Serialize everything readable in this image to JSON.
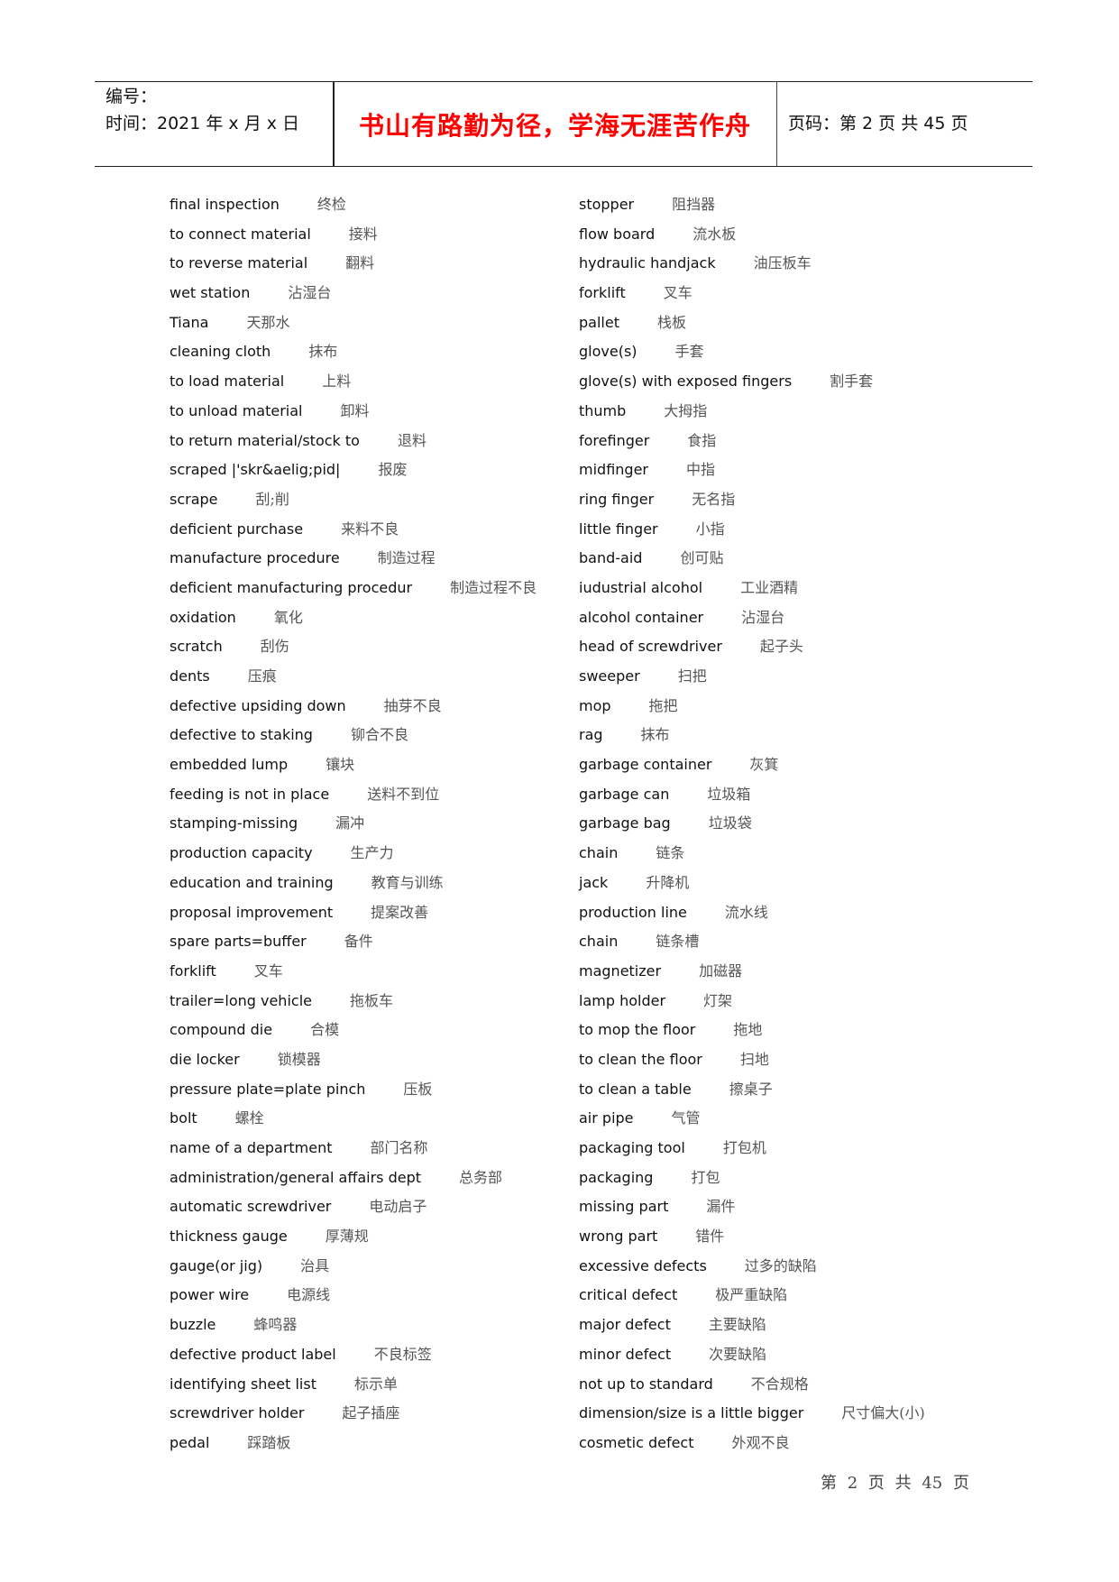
{
  "header": {
    "number_label": "编号：",
    "date_label": "时间：2021 年 x 月 x 日",
    "title": "书山有路勤为径，学海无涯苦作舟",
    "page_label": "页码：第 2 页  共 45 页",
    "title_color": "#ff0000"
  },
  "left_column": [
    {
      "en": "final inspection",
      "zh": "终检"
    },
    {
      "en": "to connect material",
      "zh": "接料"
    },
    {
      "en": "to reverse material",
      "zh": "翻料"
    },
    {
      "en": "wet station",
      "zh": "沾湿台"
    },
    {
      "en": "Tiana",
      "zh": "天那水"
    },
    {
      "en": "cleaning cloth",
      "zh": "抹布"
    },
    {
      "en": "to load material",
      "zh": "上料"
    },
    {
      "en": "to unload material",
      "zh": "卸料"
    },
    {
      "en": "to return material/stock to",
      "zh": "退料"
    },
    {
      "en": "scraped |'skr&aelig;pid|",
      "zh": "报废"
    },
    {
      "en": "scrape",
      "zh": "刮;削"
    },
    {
      "en": "deficient purchase",
      "zh": "来料不良"
    },
    {
      "en": "manufacture procedure",
      "zh": "制造过程"
    },
    {
      "en": "deficient manufacturing procedur",
      "zh": "制造过程不良"
    },
    {
      "en": "oxidation",
      "zh": "氧化"
    },
    {
      "en": "scratch",
      "zh": "刮伤"
    },
    {
      "en": "dents",
      "zh": "压痕"
    },
    {
      "en": "defective upsiding down",
      "zh": "抽芽不良"
    },
    {
      "en": "defective to staking",
      "zh": "铆合不良"
    },
    {
      "en": "embedded lump",
      "zh": "镶块"
    },
    {
      "en": "feeding is not in place",
      "zh": "送料不到位"
    },
    {
      "en": "stamping-missing",
      "zh": "漏冲"
    },
    {
      "en": "production capacity",
      "zh": "生产力"
    },
    {
      "en": "education and training",
      "zh": "教育与训练"
    },
    {
      "en": "proposal improvement",
      "zh": "提案改善"
    },
    {
      "en": "spare parts=buffer",
      "zh": "备件"
    },
    {
      "en": "forklift",
      "zh": "叉车"
    },
    {
      "en": "trailer=long vehicle",
      "zh": "拖板车"
    },
    {
      "en": "compound die",
      "zh": "合模"
    },
    {
      "en": "die locker",
      "zh": "锁模器"
    },
    {
      "en": "pressure plate=plate pinch",
      "zh": "压板"
    },
    {
      "en": "bolt",
      "zh": "螺栓"
    },
    {
      "en": "name of a department",
      "zh": "部门名称"
    },
    {
      "en": "administration/general affairs dept",
      "zh": "总务部"
    },
    {
      "en": "automatic screwdriver",
      "zh": "电动启子"
    },
    {
      "en": "thickness gauge",
      "zh": "厚薄规"
    },
    {
      "en": "gauge(or jig)",
      "zh": "治具"
    },
    {
      "en": "power wire",
      "zh": "电源线"
    },
    {
      "en": "buzzle",
      "zh": "蜂鸣器"
    },
    {
      "en": "defective product label",
      "zh": "不良标签"
    },
    {
      "en": "identifying sheet list",
      "zh": "标示单"
    },
    {
      "en": "screwdriver holder",
      "zh": "起子插座"
    },
    {
      "en": "pedal",
      "zh": "踩踏板"
    }
  ],
  "right_column": [
    {
      "en": "stopper",
      "zh": "阻挡器"
    },
    {
      "en": "flow board",
      "zh": "流水板"
    },
    {
      "en": "hydraulic handjack",
      "zh": "油压板车"
    },
    {
      "en": "forklift",
      "zh": "叉车"
    },
    {
      "en": "pallet",
      "zh": "栈板"
    },
    {
      "en": "glove(s)",
      "zh": "手套"
    },
    {
      "en": "glove(s) with exposed fingers",
      "zh": "割手套"
    },
    {
      "en": "thumb",
      "zh": "大拇指"
    },
    {
      "en": "forefinger",
      "zh": "食指"
    },
    {
      "en": "midfinger",
      "zh": "中指"
    },
    {
      "en": "ring finger",
      "zh": "无名指"
    },
    {
      "en": "little finger",
      "zh": "小指"
    },
    {
      "en": "band-aid",
      "zh": "创可贴"
    },
    {
      "en": "iudustrial alcohol",
      "zh": "工业酒精"
    },
    {
      "en": "alcohol container",
      "zh": "沾湿台"
    },
    {
      "en": "head of screwdriver",
      "zh": "起子头"
    },
    {
      "en": "sweeper",
      "zh": "扫把"
    },
    {
      "en": "mop",
      "zh": "拖把"
    },
    {
      "en": "rag",
      "zh": "抹布"
    },
    {
      "en": "garbage container",
      "zh": "灰箕"
    },
    {
      "en": "garbage can",
      "zh": "垃圾箱"
    },
    {
      "en": "garbage bag",
      "zh": "垃圾袋"
    },
    {
      "en": "chain",
      "zh": "链条"
    },
    {
      "en": "jack",
      "zh": "升降机"
    },
    {
      "en": "production line",
      "zh": "流水线"
    },
    {
      "en": "chain",
      "zh": "链条槽"
    },
    {
      "en": "magnetizer",
      "zh": "加磁器"
    },
    {
      "en": "lamp holder",
      "zh": "灯架"
    },
    {
      "en": "to mop the floor",
      "zh": "拖地"
    },
    {
      "en": "to clean the floor",
      "zh": "扫地"
    },
    {
      "en": "to clean a table",
      "zh": "擦桌子"
    },
    {
      "en": "air pipe",
      "zh": "气管"
    },
    {
      "en": "packaging tool",
      "zh": "打包机"
    },
    {
      "en": "packaging",
      "zh": "打包"
    },
    {
      "en": "missing part",
      "zh": "漏件"
    },
    {
      "en": "wrong part",
      "zh": "错件"
    },
    {
      "en": "excessive defects",
      "zh": "过多的缺陷"
    },
    {
      "en": "critical defect",
      "zh": "极严重缺陷"
    },
    {
      "en": "major defect",
      "zh": "主要缺陷"
    },
    {
      "en": "minor defect",
      "zh": "次要缺陷"
    },
    {
      "en": "not up to standard",
      "zh": "不合规格"
    },
    {
      "en": "dimension/size is a little bigger",
      "zh": "尺寸偏大(小)"
    },
    {
      "en": "cosmetic defect",
      "zh": "外观不良"
    }
  ],
  "footer": {
    "page_text": "第 2 页 共 45 页"
  }
}
